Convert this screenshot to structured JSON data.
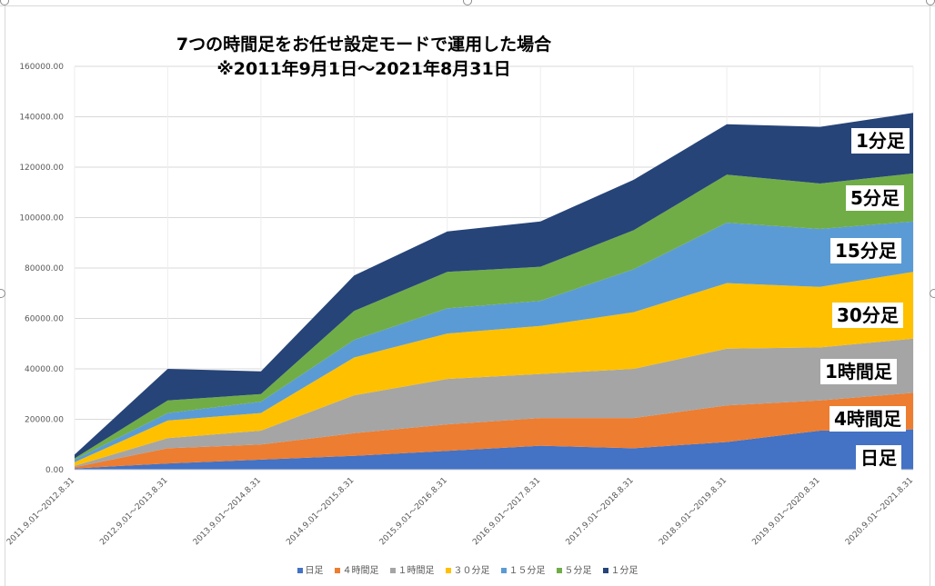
{
  "chart_data": {
    "type": "area",
    "stacked": true,
    "title_lines": [
      "7つの時間足をお任せ設定モードで運用した場合",
      "※2011年9月1日～2021年8月31日"
    ],
    "categories": [
      "2011.9.01～2012.8.31",
      "2012.9.01～2013.8.31",
      "2013.9.01～2014.8.31",
      "2014.9.01～2015.8.31",
      "2015.9.01～2016.8.31",
      "2016.9.01～2017.8.31",
      "2017.9.01～2018.8.31",
      "2018.9.01～2019.8.31",
      "2019.9.01～2020.8.31",
      "2020.9.01～2021.8.31"
    ],
    "y_ticks": [
      "0.00",
      "20000.00",
      "40000.00",
      "60000.00",
      "80000.00",
      "100000.00",
      "120000.00",
      "140000.00",
      "160000.00"
    ],
    "ylim": [
      0,
      160000
    ],
    "series": [
      {
        "name": "日足",
        "legend": "日足",
        "label": "日足",
        "color": "#4472c4",
        "values": [
          500,
          2500,
          4000,
          5500,
          7500,
          9500,
          8500,
          11000,
          15500,
          16000
        ]
      },
      {
        "name": "4時間足",
        "legend": "４時間足",
        "label": "4時間足",
        "color": "#ed7d31",
        "values": [
          500,
          6000,
          6000,
          9000,
          10500,
          11000,
          12000,
          14500,
          12000,
          14500
        ]
      },
      {
        "name": "1時間足",
        "legend": "１時間足",
        "label": "1時間足",
        "color": "#a5a5a5",
        "values": [
          500,
          4000,
          5500,
          15000,
          18000,
          17500,
          19500,
          22500,
          21000,
          21500
        ]
      },
      {
        "name": "30分足",
        "legend": "３０分足",
        "label": "30分足",
        "color": "#ffc000",
        "values": [
          1500,
          7000,
          7000,
          15000,
          18000,
          19000,
          22500,
          26000,
          24000,
          26500
        ]
      },
      {
        "name": "15分足",
        "legend": "１５分足",
        "label": "15分足",
        "color": "#5b9bd5",
        "values": [
          1000,
          3000,
          4500,
          7000,
          10000,
          10000,
          17000,
          24000,
          23000,
          20000
        ]
      },
      {
        "name": "5分足",
        "legend": "５分足",
        "label": "5分足",
        "color": "#70ad47",
        "values": [
          500,
          5000,
          3000,
          11500,
          14500,
          13500,
          15500,
          19000,
          18000,
          19000
        ]
      },
      {
        "name": "1分足",
        "legend": "１分足",
        "label": "1分足",
        "color": "#264478",
        "values": [
          1500,
          12500,
          9000,
          14000,
          16000,
          18000,
          20000,
          20000,
          22500,
          24000
        ]
      }
    ],
    "xlabel": "",
    "ylabel": "",
    "grid": true,
    "legend_position": "bottom"
  }
}
